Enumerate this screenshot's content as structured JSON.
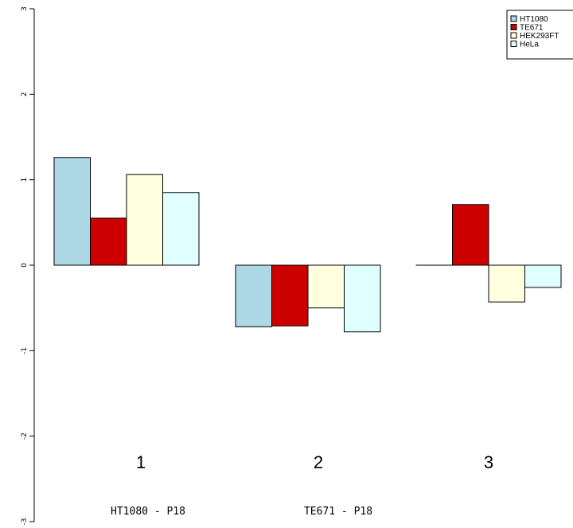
{
  "chart_data": {
    "type": "bar",
    "categories": [
      "1",
      "2",
      "3"
    ],
    "series": [
      {
        "name": "HT1080",
        "color": "#add8e6",
        "values": [
          1.26,
          -0.72,
          0.0
        ]
      },
      {
        "name": "TE671",
        "color": "#cd0000",
        "values": [
          0.55,
          -0.71,
          0.71
        ]
      },
      {
        "name": "HEK293FT",
        "color": "#ffffe0",
        "values": [
          1.06,
          -0.5,
          -0.43
        ]
      },
      {
        "name": "HeLa",
        "color": "#e0ffff",
        "values": [
          0.85,
          -0.78,
          -0.26
        ]
      }
    ],
    "ylim": [
      -3,
      3
    ],
    "yticks": [
      "-3",
      "-2",
      "-1",
      "0",
      "1",
      "2",
      "3"
    ],
    "group_labels": [
      "1",
      "2",
      "3"
    ],
    "bottom_labels": [
      "HT1080 - P18",
      "TE671 - P18"
    ],
    "legend_entries": [
      "HT1080",
      "TE671",
      "HEK293FT",
      "HeLa"
    ],
    "legend_position": "top-right",
    "grid": false,
    "title": "",
    "xlabel": "",
    "ylabel": ""
  }
}
